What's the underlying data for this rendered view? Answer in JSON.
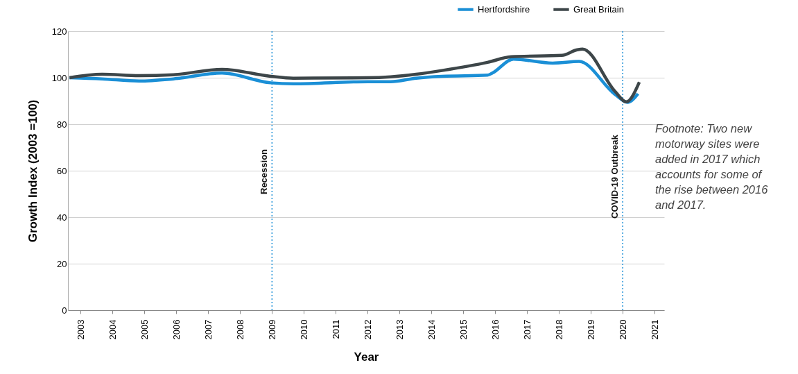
{
  "chart_data": {
    "type": "line",
    "xlabel": "Year",
    "ylabel": "Growth Index (2003 =100)",
    "xlim": [
      2002.6,
      2021.3
    ],
    "xticks": [
      2003,
      2004,
      2005,
      2006,
      2007,
      2008,
      2009,
      2010,
      2011,
      2012,
      2013,
      2014,
      2015,
      2016,
      2017,
      2018,
      2019,
      2020,
      2021
    ],
    "ylim": [
      0,
      120
    ],
    "yticks": [
      0,
      20,
      40,
      60,
      80,
      100,
      120
    ],
    "grid": "y",
    "legend": "top right",
    "line_style": "solid",
    "marker": "none",
    "series": [
      {
        "name": "Hertfordshire",
        "color": "#1a8fd6",
        "x": [
          2002.65,
          2003.67,
          2004.83,
          2005.91,
          2007.43,
          2008.96,
          2009.67,
          2012.0,
          2012.72,
          2013.52,
          2014.33,
          2015.76,
          2015.91,
          2016.57,
          2017.8,
          2018.63,
          2019.76,
          2020.15,
          2020.48
        ],
        "values": [
          100,
          99.5,
          98.6,
          99.5,
          102,
          97.8,
          97.4,
          98.3,
          98.3,
          99.8,
          100.6,
          101.1,
          102,
          108,
          106.3,
          107,
          92.8,
          89.4,
          93.1
        ]
      },
      {
        "name": "Great Britain",
        "color": "#3d4649",
        "x": [
          2002.65,
          2003.67,
          2004.83,
          2005.91,
          2007.43,
          2008.96,
          2009.67,
          2012.0,
          2012.72,
          2013.52,
          2014.33,
          2015.76,
          2016.5,
          2018.09,
          2018.57,
          2018.74,
          2019.76,
          2020.11,
          2020.52
        ],
        "values": [
          100,
          101.5,
          100.9,
          101.3,
          103.6,
          100.6,
          99.8,
          100,
          100.4,
          101.5,
          103.1,
          106.6,
          109,
          109.6,
          112,
          112.3,
          94.1,
          89.6,
          98.1
        ]
      }
    ],
    "ref_lines": [
      {
        "axis": "x",
        "value": 2009,
        "label": "Recession",
        "color": "#1a8fd6",
        "line_style": "dotted"
      },
      {
        "axis": "x",
        "value": 2020,
        "label": "COVID-19 Outbreak",
        "color": "#1a8fd6",
        "line_style": "dotted"
      }
    ],
    "annotations": [
      "Footnote: Two new motorway sites were added in 2017 which accounts for some of the rise between 2016 and 2017."
    ]
  }
}
